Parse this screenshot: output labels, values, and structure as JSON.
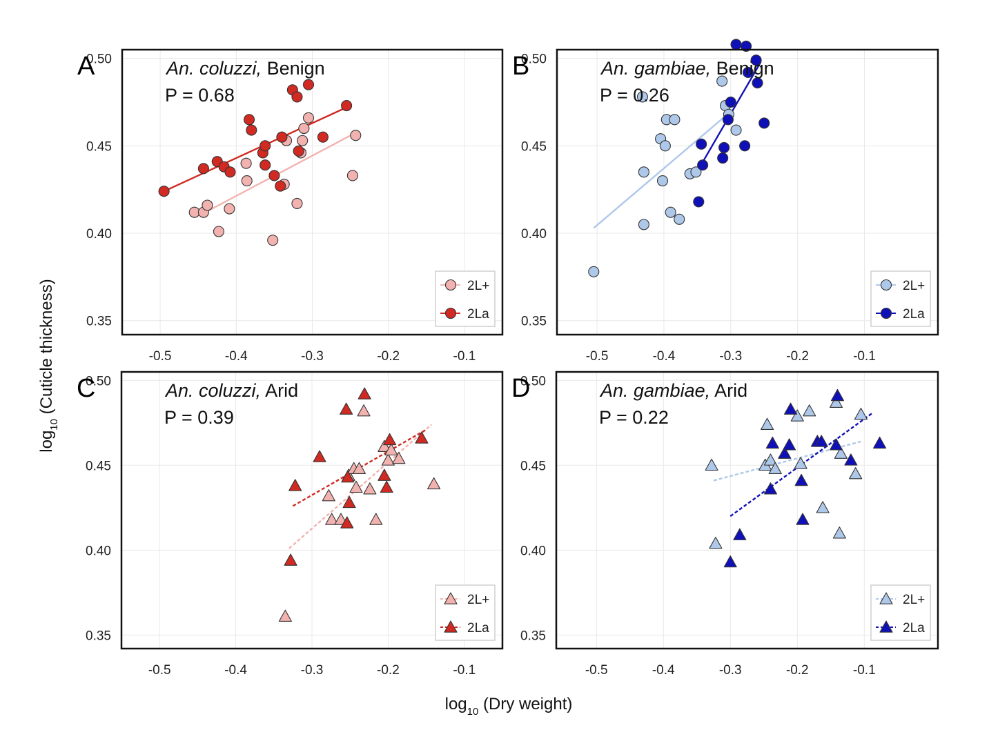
{
  "figure": {
    "ylabel_prefix": "log",
    "ylabel_sub": "10",
    "ylabel_text": " (Cuticle thickness)",
    "xlabel_prefix": "log",
    "xlabel_sub": "10",
    "xlabel_text": " (Dry weight)"
  },
  "colors": {
    "coluzzi_2Lplus": "#f2b3b0",
    "coluzzi_2La": "#d02a22",
    "gambiae_2Lplus": "#aec8ea",
    "gambiae_2La": "#1010b8",
    "grid": "#e8e8e8",
    "frame": "#111111"
  },
  "chart_data": [
    {
      "panel": "A",
      "type": "scatter",
      "species": "An. coluzzi,",
      "condition": " Benign",
      "pvalue": "P = 0.68",
      "marker": "circle",
      "line_style": "solid",
      "xlim": [
        -0.55,
        -0.05
      ],
      "ylim": [
        0.342,
        0.505
      ],
      "xticks": [
        "-0.5",
        "-0.4",
        "-0.3",
        "-0.2",
        "-0.1"
      ],
      "xtick_values": [
        -0.5,
        -0.4,
        -0.3,
        -0.2,
        -0.1
      ],
      "yticks": [
        "0.50",
        "0.45",
        "0.40",
        "0.35"
      ],
      "ytick_values": [
        0.5,
        0.45,
        0.4,
        0.35
      ],
      "legend": [
        "2L+",
        "2La"
      ],
      "series": [
        {
          "name": "2L+",
          "color": "#f2b3b0",
          "fit": [
            [
              -0.445,
              0.411
            ],
            [
              -0.245,
              0.457
            ]
          ],
          "points": [
            [
              -0.455,
              0.412
            ],
            [
              -0.443,
              0.412
            ],
            [
              -0.438,
              0.416
            ],
            [
              -0.423,
              0.401
            ],
            [
              -0.409,
              0.414
            ],
            [
              -0.387,
              0.44
            ],
            [
              -0.386,
              0.43
            ],
            [
              -0.352,
              0.396
            ],
            [
              -0.337,
              0.428
            ],
            [
              -0.334,
              0.453
            ],
            [
              -0.32,
              0.417
            ],
            [
              -0.315,
              0.446
            ],
            [
              -0.313,
              0.453
            ],
            [
              -0.311,
              0.46
            ],
            [
              -0.305,
              0.466
            ],
            [
              -0.247,
              0.433
            ],
            [
              -0.243,
              0.456
            ]
          ]
        },
        {
          "name": "2La",
          "color": "#d02a22",
          "fit": [
            [
              -0.495,
              0.424
            ],
            [
              -0.255,
              0.472
            ]
          ],
          "points": [
            [
              -0.495,
              0.424
            ],
            [
              -0.443,
              0.437
            ],
            [
              -0.425,
              0.441
            ],
            [
              -0.416,
              0.438
            ],
            [
              -0.408,
              0.435
            ],
            [
              -0.383,
              0.465
            ],
            [
              -0.38,
              0.459
            ],
            [
              -0.365,
              0.446
            ],
            [
              -0.362,
              0.45
            ],
            [
              -0.362,
              0.439
            ],
            [
              -0.35,
              0.433
            ],
            [
              -0.342,
              0.427
            ],
            [
              -0.34,
              0.455
            ],
            [
              -0.326,
              0.482
            ],
            [
              -0.32,
              0.478
            ],
            [
              -0.318,
              0.447
            ],
            [
              -0.305,
              0.485
            ],
            [
              -0.286,
              0.455
            ],
            [
              -0.255,
              0.473
            ]
          ]
        }
      ]
    },
    {
      "panel": "B",
      "type": "scatter",
      "species": "An. gambiae,",
      "condition": " Benign",
      "pvalue": "P = 0.26",
      "marker": "circle",
      "line_style": "solid",
      "xlim": [
        -0.56,
        0.01
      ],
      "ylim": [
        0.342,
        0.505
      ],
      "xticks": [
        "-0.5",
        "-0.4",
        "-0.3",
        "-0.2",
        "-0.1"
      ],
      "xtick_values": [
        -0.5,
        -0.4,
        -0.3,
        -0.2,
        -0.1
      ],
      "yticks": [
        "0.50",
        "0.45",
        "0.40",
        "0.35"
      ],
      "ytick_values": [
        0.5,
        0.45,
        0.4,
        0.35
      ],
      "legend": [
        "2L+",
        "2La"
      ],
      "series": [
        {
          "name": "2L+",
          "color": "#aec8ea",
          "fit": [
            [
              -0.505,
              0.403
            ],
            [
              -0.305,
              0.468
            ]
          ],
          "points": [
            [
              -0.505,
              0.378
            ],
            [
              -0.43,
              0.405
            ],
            [
              -0.43,
              0.435
            ],
            [
              -0.432,
              0.478
            ],
            [
              -0.405,
              0.454
            ],
            [
              -0.402,
              0.43
            ],
            [
              -0.398,
              0.45
            ],
            [
              -0.396,
              0.465
            ],
            [
              -0.39,
              0.412
            ],
            [
              -0.384,
              0.465
            ],
            [
              -0.377,
              0.408
            ],
            [
              -0.361,
              0.434
            ],
            [
              -0.352,
              0.435
            ],
            [
              -0.313,
              0.487
            ],
            [
              -0.308,
              0.473
            ],
            [
              -0.303,
              0.468
            ],
            [
              -0.292,
              0.459
            ]
          ]
        },
        {
          "name": "2La",
          "color": "#1010b8",
          "fit": [
            [
              -0.343,
              0.44
            ],
            [
              -0.255,
              0.498
            ]
          ],
          "points": [
            [
              -0.348,
              0.418
            ],
            [
              -0.344,
              0.451
            ],
            [
              -0.342,
              0.439
            ],
            [
              -0.312,
              0.443
            ],
            [
              -0.31,
              0.449
            ],
            [
              -0.304,
              0.465
            ],
            [
              -0.3,
              0.475
            ],
            [
              -0.292,
              0.508
            ],
            [
              -0.279,
              0.45
            ],
            [
              -0.277,
              0.507
            ],
            [
              -0.274,
              0.492
            ],
            [
              -0.262,
              0.499
            ],
            [
              -0.26,
              0.486
            ],
            [
              -0.25,
              0.463
            ]
          ]
        }
      ]
    },
    {
      "panel": "C",
      "type": "scatter",
      "species": "An. coluzzi,",
      "condition": " Arid",
      "pvalue": "P = 0.39",
      "marker": "triangle",
      "line_style": "dashed",
      "xlim": [
        -0.55,
        -0.05
      ],
      "ylim": [
        0.342,
        0.505
      ],
      "xticks": [
        "-0.5",
        "-0.4",
        "-0.3",
        "-0.2",
        "-0.1"
      ],
      "xtick_values": [
        -0.5,
        -0.4,
        -0.3,
        -0.2,
        -0.1
      ],
      "yticks": [
        "0.50",
        "0.45",
        "0.40",
        "0.35"
      ],
      "ytick_values": [
        0.5,
        0.45,
        0.4,
        0.35
      ],
      "legend": [
        "2L+",
        "2La"
      ],
      "series": [
        {
          "name": "2L+",
          "color": "#f2b3b0",
          "fit": [
            [
              -0.33,
              0.401
            ],
            [
              -0.143,
              0.474
            ]
          ],
          "points": [
            [
              -0.335,
              0.361
            ],
            [
              -0.278,
              0.432
            ],
            [
              -0.274,
              0.418
            ],
            [
              -0.262,
              0.418
            ],
            [
              -0.252,
              0.444
            ],
            [
              -0.245,
              0.448
            ],
            [
              -0.242,
              0.437
            ],
            [
              -0.238,
              0.448
            ],
            [
              -0.232,
              0.482
            ],
            [
              -0.224,
              0.436
            ],
            [
              -0.216,
              0.418
            ],
            [
              -0.205,
              0.461
            ],
            [
              -0.2,
              0.453
            ],
            [
              -0.196,
              0.459
            ],
            [
              -0.186,
              0.454
            ],
            [
              -0.14,
              0.439
            ]
          ]
        },
        {
          "name": "2La",
          "color": "#d02a22",
          "fit": [
            [
              -0.325,
              0.426
            ],
            [
              -0.15,
              0.471
            ]
          ],
          "points": [
            [
              -0.328,
              0.394
            ],
            [
              -0.322,
              0.438
            ],
            [
              -0.29,
              0.455
            ],
            [
              -0.255,
              0.483
            ],
            [
              -0.254,
              0.416
            ],
            [
              -0.253,
              0.443
            ],
            [
              -0.251,
              0.428
            ],
            [
              -0.231,
              0.492
            ],
            [
              -0.205,
              0.444
            ],
            [
              -0.202,
              0.437
            ],
            [
              -0.198,
              0.465
            ],
            [
              -0.156,
              0.466
            ]
          ]
        }
      ]
    },
    {
      "panel": "D",
      "type": "scatter",
      "species": "An. gambiae,",
      "condition": " Arid",
      "pvalue": "P = 0.22",
      "marker": "triangle",
      "line_style": "dashed",
      "xlim": [
        -0.56,
        0.01
      ],
      "ylim": [
        0.342,
        0.505
      ],
      "xticks": [
        "-0.5",
        "-0.4",
        "-0.3",
        "-0.2",
        "-0.1"
      ],
      "xtick_values": [
        -0.5,
        -0.4,
        -0.3,
        -0.2,
        -0.1
      ],
      "yticks": [
        "0.50",
        "0.45",
        "0.40",
        "0.35"
      ],
      "ytick_values": [
        0.5,
        0.45,
        0.4,
        0.35
      ],
      "legend": [
        "2L+",
        "2La"
      ],
      "series": [
        {
          "name": "2L+",
          "color": "#aec8ea",
          "fit": [
            [
              -0.325,
              0.441
            ],
            [
              -0.105,
              0.464
            ]
          ],
          "points": [
            [
              -0.328,
              0.45
            ],
            [
              -0.322,
              0.404
            ],
            [
              -0.248,
              0.45
            ],
            [
              -0.245,
              0.474
            ],
            [
              -0.24,
              0.453
            ],
            [
              -0.233,
              0.448
            ],
            [
              -0.2,
              0.479
            ],
            [
              -0.195,
              0.451
            ],
            [
              -0.182,
              0.482
            ],
            [
              -0.162,
              0.425
            ],
            [
              -0.142,
              0.487
            ],
            [
              -0.137,
              0.41
            ],
            [
              -0.135,
              0.457
            ],
            [
              -0.113,
              0.445
            ],
            [
              -0.105,
              0.48
            ]
          ]
        },
        {
          "name": "2La",
          "color": "#1010b8",
          "fit": [
            [
              -0.3,
              0.42
            ],
            [
              -0.087,
              0.481
            ]
          ],
          "points": [
            [
              -0.3,
              0.393
            ],
            [
              -0.286,
              0.409
            ],
            [
              -0.24,
              0.436
            ],
            [
              -0.237,
              0.463
            ],
            [
              -0.219,
              0.457
            ],
            [
              -0.212,
              0.462
            ],
            [
              -0.21,
              0.483
            ],
            [
              -0.194,
              0.441
            ],
            [
              -0.192,
              0.418
            ],
            [
              -0.17,
              0.464
            ],
            [
              -0.164,
              0.464
            ],
            [
              -0.142,
              0.462
            ],
            [
              -0.14,
              0.491
            ],
            [
              -0.12,
              0.453
            ],
            [
              -0.077,
              0.463
            ]
          ]
        }
      ]
    }
  ]
}
